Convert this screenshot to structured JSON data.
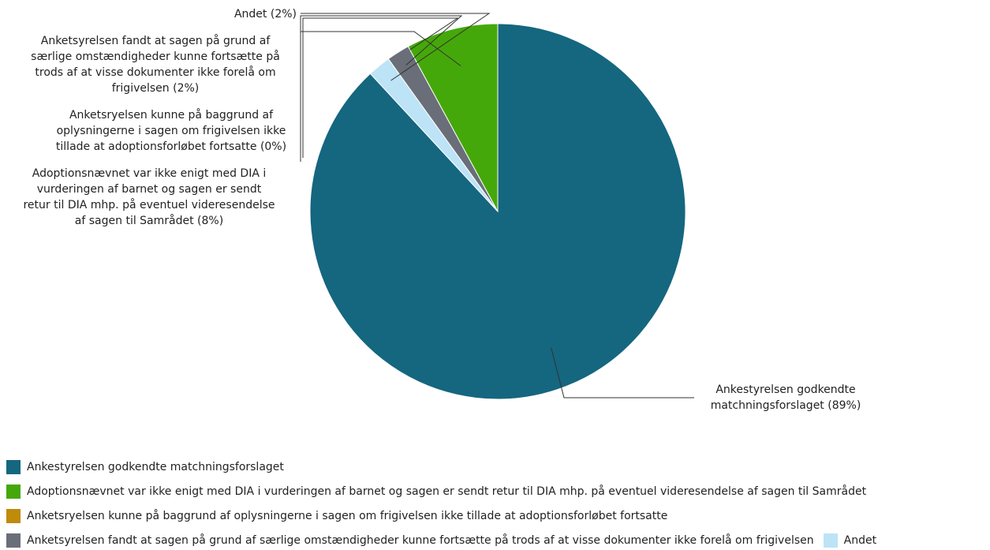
{
  "chart_data": {
    "type": "pie",
    "slices": [
      {
        "label": "Ankestyrelsen godkendte matchningsforslaget",
        "value": 89,
        "color": "#15667f",
        "callout": [
          "Ankestyrelsen godkendte",
          "matchningsforslaget (89%)"
        ]
      },
      {
        "label": "Adoptionsnævnet var ikke enigt med DIA i vurderingen af barnet og sagen er sendt retur til DIA mhp. på eventuel videresendelse af sagen til Samrådet",
        "value": 8,
        "color": "#45a80a",
        "callout": [
          "Adoptionsnævnet var ikke enigt med DIA i",
          "vurderingen af barnet og sagen er sendt",
          "retur til DIA mhp. på eventuel videresendelse",
          "af sagen til Samrådet (8%)"
        ]
      },
      {
        "label": "Anketsryelsen kunne på baggrund af oplysningerne i sagen om frigivelsen ikke tillade at adoptionsforløbet fortsatte",
        "value": 0,
        "color": "#bf8b0a",
        "callout": [
          "Anketsryelsen kunne på baggrund af",
          "oplysningerne i sagen om frigivelsen ikke",
          "tillade at adoptionsforløbet fortsatte (0%)"
        ]
      },
      {
        "label": "Anketsyrelsen fandt at sagen på grund af særlige omstændigheder kunne fortsætte på trods af at visse dokumenter ikke forelå om frigivelsen",
        "value": 2,
        "color": "#6a6e78",
        "callout": [
          "Anketsyrelsen fandt at sagen på grund af",
          "særlige omstændigheder kunne fortsætte på",
          "trods af at visse dokumenter ikke forelå om",
          "frigivelsen (2%)"
        ]
      },
      {
        "label": "Andet",
        "value": 2,
        "color": "#bde3f7",
        "callout": [
          "Andet (2%)"
        ]
      }
    ],
    "legend_position": "bottom"
  }
}
